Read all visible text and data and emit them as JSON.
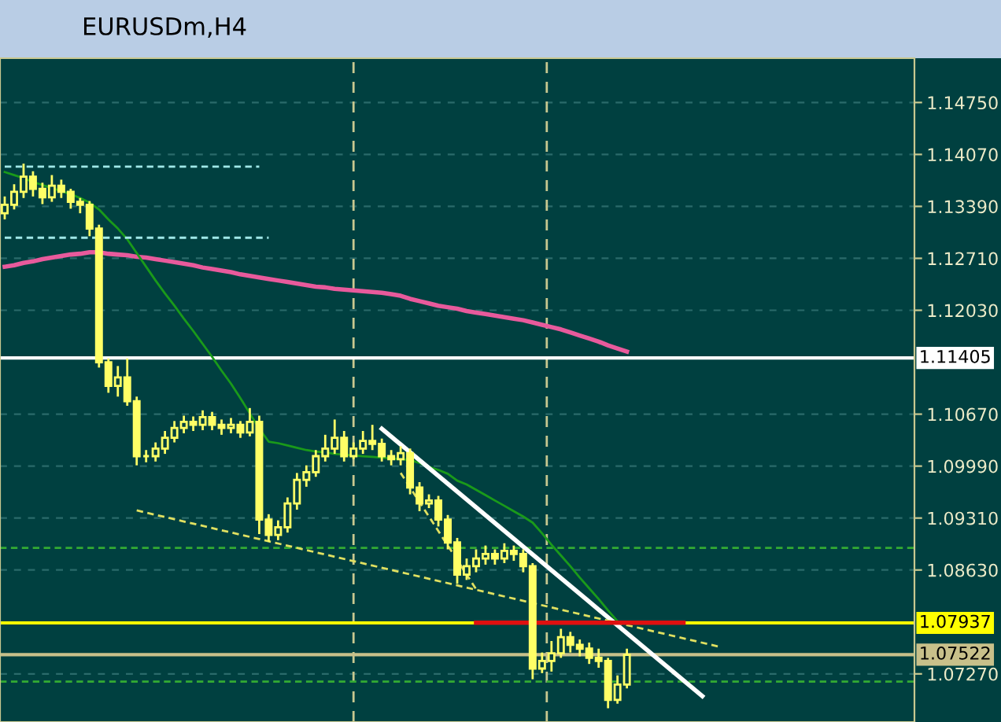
{
  "chart_data": {
    "type": "candlestick",
    "title": "EURUSDm,H4",
    "categories": [
      null,
      null,
      null,
      null,
      null,
      null,
      null,
      null,
      null,
      null,
      null,
      null,
      null,
      null,
      null,
      null,
      null,
      null,
      null,
      null,
      null,
      null,
      null,
      null,
      null,
      null,
      null,
      null,
      null,
      null,
      null,
      null,
      null,
      null,
      null,
      null,
      null,
      null,
      null,
      null,
      null,
      null,
      null,
      null,
      null,
      null,
      null,
      null,
      null,
      null,
      null,
      null,
      null,
      null,
      null,
      null,
      null,
      null,
      null,
      null,
      null,
      null,
      null,
      null,
      null,
      null,
      null,
      null,
      null,
      null,
      null,
      null,
      null,
      null,
      null,
      null,
      null,
      null,
      null,
      null,
      null,
      null,
      null,
      null,
      null,
      null,
      null,
      null,
      null,
      null,
      null,
      null,
      null,
      null,
      null,
      null,
      null
    ],
    "ohlc": [
      [
        1.133,
        1.1352,
        1.1322,
        1.1341
      ],
      [
        1.1341,
        1.1368,
        1.1335,
        1.1358
      ],
      [
        1.1358,
        1.1395,
        1.135,
        1.1378
      ],
      [
        1.1378,
        1.1385,
        1.1352,
        1.1362
      ],
      [
        1.1362,
        1.137,
        1.1342,
        1.1351
      ],
      [
        1.1351,
        1.138,
        1.1345,
        1.1366
      ],
      [
        1.1366,
        1.1374,
        1.135,
        1.1358
      ],
      [
        1.1358,
        1.1362,
        1.1336,
        1.1345
      ],
      [
        1.1345,
        1.135,
        1.133,
        1.1341
      ],
      [
        1.1341,
        1.1346,
        1.13,
        1.131
      ],
      [
        1.131,
        1.1315,
        1.1128,
        1.1135
      ],
      [
        1.1135,
        1.114,
        1.1095,
        1.1104
      ],
      [
        1.1104,
        1.113,
        1.109,
        1.1115
      ],
      [
        1.1115,
        1.114,
        1.1078,
        1.1084
      ],
      [
        1.1084,
        1.109,
        1.1,
        1.1012
      ],
      [
        1.1012,
        1.102,
        1.1004,
        1.1012
      ],
      [
        1.1012,
        1.103,
        1.1005,
        1.1022
      ],
      [
        1.1022,
        1.1045,
        1.1015,
        1.1036
      ],
      [
        1.1036,
        1.1058,
        1.103,
        1.1049
      ],
      [
        1.1049,
        1.1065,
        1.1042,
        1.1057
      ],
      [
        1.1057,
        1.1064,
        1.1045,
        1.1053
      ],
      [
        1.1053,
        1.1072,
        1.1046,
        1.1063
      ],
      [
        1.1063,
        1.107,
        1.1046,
        1.1053
      ],
      [
        1.1053,
        1.106,
        1.104,
        1.1049
      ],
      [
        1.1049,
        1.1062,
        1.1042,
        1.1053
      ],
      [
        1.1053,
        1.1058,
        1.1036,
        1.1043
      ],
      [
        1.1043,
        1.1075,
        1.1038,
        1.1057
      ],
      [
        1.1057,
        1.1065,
        1.091,
        1.0929
      ],
      [
        1.0929,
        1.0936,
        1.09,
        1.0909
      ],
      [
        1.0909,
        1.0928,
        1.0902,
        1.0919
      ],
      [
        1.0919,
        1.0958,
        1.0912,
        1.095
      ],
      [
        1.095,
        1.099,
        1.0942,
        1.0981
      ],
      [
        1.0981,
        1.1,
        1.0972,
        1.0991
      ],
      [
        1.0991,
        1.102,
        1.0985,
        1.1012
      ],
      [
        1.1012,
        1.104,
        1.1005,
        1.1022
      ],
      [
        1.1022,
        1.106,
        1.1015,
        1.1036
      ],
      [
        1.1036,
        1.1045,
        1.1005,
        1.1012
      ],
      [
        1.1012,
        1.103,
        1.1008,
        1.1022
      ],
      [
        1.1022,
        1.1045,
        1.1015,
        1.1032
      ],
      [
        1.1032,
        1.1053,
        1.102,
        1.1028
      ],
      [
        1.1028,
        1.1035,
        1.1005,
        1.1012
      ],
      [
        1.1012,
        1.102,
        1.1,
        1.1008
      ],
      [
        1.1008,
        1.1025,
        1.1,
        1.1016
      ],
      [
        1.1016,
        1.1022,
        1.0962,
        1.0971
      ],
      [
        1.0971,
        1.0978,
        1.094,
        1.095
      ],
      [
        1.095,
        1.0962,
        1.0944,
        1.0954
      ],
      [
        1.0954,
        1.096,
        1.092,
        1.0929
      ],
      [
        1.0929,
        1.0935,
        1.089,
        1.0899
      ],
      [
        1.0899,
        1.0905,
        1.0845,
        1.0857
      ],
      [
        1.0857,
        1.0878,
        1.085,
        1.0868
      ],
      [
        1.0868,
        1.089,
        1.086,
        1.0878
      ],
      [
        1.0878,
        1.0895,
        1.087,
        1.0884
      ],
      [
        1.0884,
        1.089,
        1.087,
        1.0878
      ],
      [
        1.0878,
        1.0898,
        1.0872,
        1.0888
      ],
      [
        1.0888,
        1.0895,
        1.0875,
        1.0884
      ],
      [
        1.0884,
        1.089,
        1.086,
        1.0868
      ],
      [
        1.0868,
        1.0872,
        1.072,
        1.0734
      ],
      [
        1.0734,
        1.0755,
        1.0728,
        1.0744
      ],
      [
        1.0744,
        1.077,
        1.073,
        1.0754
      ],
      [
        1.0754,
        1.0786,
        1.0748,
        1.0775
      ],
      [
        1.0775,
        1.0782,
        1.0755,
        1.0765
      ],
      [
        1.0765,
        1.0772,
        1.075,
        1.076
      ],
      [
        1.076,
        1.0768,
        1.074,
        1.0748
      ],
      [
        1.0748,
        1.076,
        1.0735,
        1.0744
      ],
      [
        1.0744,
        1.0748,
        1.0682,
        1.0693
      ],
      [
        1.0693,
        1.0725,
        1.0688,
        1.0713
      ],
      [
        1.0713,
        1.076,
        1.0708,
        1.0752
      ],
      null,
      null,
      null,
      null,
      null,
      null,
      null,
      null,
      null,
      null,
      null,
      null,
      null,
      null,
      null,
      null,
      null,
      null,
      null,
      null,
      null,
      null,
      null,
      null,
      null,
      null,
      null,
      null,
      null,
      null
    ],
    "series": [
      {
        "type": "line",
        "color": "#e85a9c",
        "line_style": "solid",
        "values": [
          1.126,
          1.1262,
          1.1265,
          1.1267,
          1.127,
          1.1272,
          1.1274,
          1.1276,
          1.1277,
          1.1279,
          1.1279,
          1.1277,
          1.1276,
          1.1275,
          1.1273,
          1.1272,
          1.127,
          1.1268,
          1.1266,
          1.1264,
          1.1262,
          1.1259,
          1.1257,
          1.1255,
          1.1253,
          1.125,
          1.1248,
          1.1246,
          1.1244,
          1.1242,
          1.124,
          1.1238,
          1.1236,
          1.1234,
          1.1233,
          1.1231,
          1.123,
          1.1229,
          1.1228,
          1.1227,
          1.1226,
          1.1224,
          1.1222,
          1.1218,
          1.1215,
          1.1212,
          1.1209,
          1.1207,
          1.1205,
          1.1202,
          1.12,
          1.1198,
          1.1196,
          1.1194,
          1.1192,
          1.119,
          1.1187,
          1.1184,
          1.1181,
          1.1178,
          1.1174,
          1.117,
          1.1166,
          1.1162,
          1.1157,
          1.1153,
          1.1149,
          null,
          null,
          null,
          null,
          null,
          null,
          null,
          null,
          null,
          null,
          null,
          null,
          null,
          null,
          null,
          null,
          null,
          null,
          null,
          null,
          null,
          null,
          null,
          null,
          null,
          null,
          null,
          null,
          null,
          null
        ]
      },
      {
        "type": "line",
        "color": "#1a9a1a",
        "line_style": "solid",
        "values": [
          1.1384,
          1.138,
          1.1376,
          1.1371,
          1.1367,
          1.1363,
          1.1359,
          1.1355,
          1.135,
          1.1344,
          1.1335,
          1.1322,
          1.131,
          1.1296,
          1.1278,
          1.126,
          1.1242,
          1.1225,
          1.1209,
          1.1192,
          1.1176,
          1.1159,
          1.1142,
          1.1124,
          1.1107,
          1.1088,
          1.1068,
          1.1048,
          1.1031,
          1.1029,
          1.1026,
          1.1023,
          1.102,
          1.1018,
          1.1017,
          1.1015,
          1.1014,
          1.1013,
          1.1012,
          1.1011,
          1.101,
          1.1009,
          1.1008,
          1.1007,
          1.1003,
          1.0998,
          1.0994,
          1.0989,
          1.098,
          1.0975,
          1.0968,
          1.0961,
          1.0954,
          1.0947,
          1.094,
          1.0933,
          1.0925,
          1.0911,
          1.0896,
          1.0882,
          1.0868,
          1.0853,
          1.0839,
          1.0825,
          1.081,
          1.0796,
          null,
          null,
          null,
          null,
          null,
          null,
          null,
          null,
          null,
          null,
          null,
          null,
          null,
          null,
          null,
          null,
          null,
          null,
          null,
          null,
          null,
          null,
          null,
          null,
          null,
          null,
          null,
          null,
          null,
          null,
          null
        ]
      },
      {
        "type": "line",
        "color": "#ffffff",
        "line_style": "solid",
        "values": [
          null,
          null,
          null,
          null,
          null,
          null,
          null,
          null,
          null,
          null,
          null,
          null,
          null,
          null,
          null,
          null,
          null,
          null,
          null,
          null,
          null,
          null,
          null,
          null,
          null,
          null,
          null,
          null,
          null,
          null,
          null,
          null,
          null,
          null,
          null,
          null,
          null,
          null,
          null,
          null,
          1.1048,
          null,
          null,
          null,
          null,
          null,
          null,
          null,
          null,
          null,
          null,
          null,
          null,
          null,
          null,
          null,
          null,
          null,
          null,
          null,
          null,
          null,
          null,
          null,
          null,
          null,
          null,
          null,
          null,
          null,
          null,
          null,
          null,
          null,
          1.0698,
          null,
          null,
          null,
          null,
          null,
          null,
          null,
          null,
          null,
          null,
          null,
          null,
          null,
          null,
          null,
          null,
          null,
          null,
          null,
          null,
          null,
          null
        ]
      },
      {
        "type": "line",
        "color": "#e0e060",
        "line_style": "dashed",
        "values": [
          null,
          null,
          null,
          null,
          null,
          null,
          null,
          null,
          null,
          null,
          null,
          null,
          null,
          null,
          1.0941,
          null,
          null,
          null,
          null,
          null,
          null,
          null,
          null,
          null,
          null,
          null,
          null,
          null,
          null,
          null,
          null,
          null,
          null,
          null,
          null,
          null,
          null,
          null,
          null,
          null,
          null,
          null,
          null,
          null,
          null,
          null,
          null,
          null,
          null,
          null,
          null,
          null,
          null,
          null,
          null,
          null,
          null,
          null,
          null,
          null,
          null,
          null,
          null,
          null,
          null,
          null,
          null,
          null,
          null,
          null,
          null,
          null,
          null,
          null,
          null,
          null,
          1.0762,
          null,
          null,
          null,
          null,
          null,
          null,
          null,
          null,
          null,
          null,
          null,
          null,
          null,
          null,
          null,
          null,
          null,
          null,
          null,
          null
        ]
      },
      {
        "type": "line",
        "color": "#e0e060",
        "line_style": "dashed",
        "values": [
          null,
          null,
          null,
          null,
          null,
          null,
          null,
          null,
          null,
          null,
          null,
          null,
          null,
          null,
          null,
          null,
          null,
          null,
          null,
          null,
          null,
          null,
          null,
          null,
          null,
          null,
          null,
          null,
          null,
          null,
          null,
          null,
          null,
          null,
          null,
          null,
          null,
          null,
          null,
          null,
          null,
          null,
          1.099,
          null,
          null,
          null,
          null,
          null,
          null,
          null,
          1.0838,
          null,
          null,
          null,
          null,
          null,
          null,
          null,
          null,
          null,
          null,
          null,
          null,
          null,
          null,
          null,
          null,
          null,
          null,
          null,
          null,
          null,
          null,
          null,
          null,
          null,
          null,
          null,
          null,
          null,
          null,
          null,
          null,
          null,
          null,
          null,
          null,
          null,
          null,
          null,
          null,
          null,
          null,
          null,
          null,
          null,
          null
        ]
      },
      {
        "type": "line",
        "color": "#e01010",
        "line_style": "solid",
        "values": [
          null,
          null,
          null,
          null,
          null,
          null,
          null,
          null,
          null,
          null,
          null,
          null,
          null,
          null,
          null,
          null,
          null,
          null,
          null,
          null,
          null,
          null,
          null,
          null,
          null,
          null,
          null,
          null,
          null,
          null,
          null,
          null,
          null,
          null,
          null,
          null,
          null,
          null,
          null,
          null,
          null,
          null,
          null,
          null,
          null,
          null,
          null,
          null,
          null,
          null,
          1.0794,
          null,
          null,
          null,
          null,
          null,
          null,
          null,
          null,
          null,
          null,
          null,
          null,
          null,
          null,
          null,
          null,
          null,
          null,
          null,
          null,
          null,
          1.0794,
          null,
          null,
          null,
          null,
          null,
          null,
          null,
          null,
          null,
          null,
          null,
          null,
          null,
          null,
          null,
          null,
          null,
          null,
          null,
          null,
          null,
          null,
          null,
          null
        ]
      },
      {
        "type": "line",
        "color": "#a0e8e8",
        "line_style": "dashed",
        "values": [
          1.1391,
          null,
          null,
          null,
          null,
          null,
          null,
          null,
          null,
          null,
          null,
          null,
          null,
          null,
          null,
          null,
          null,
          null,
          null,
          null,
          null,
          null,
          null,
          null,
          null,
          null,
          null,
          1.1391,
          null,
          null,
          null,
          null,
          null,
          null,
          null,
          null,
          null,
          null,
          null,
          null,
          null,
          null,
          null,
          null,
          null,
          null,
          null,
          null,
          null,
          null,
          null,
          null,
          null,
          null,
          null,
          null,
          null,
          null,
          null,
          null,
          null,
          null,
          null,
          null,
          null,
          null,
          null,
          null,
          null,
          null,
          null,
          null,
          null,
          null,
          null,
          null,
          null,
          null,
          null,
          null,
          null,
          null,
          null,
          null,
          null,
          null,
          null,
          null,
          null,
          null,
          null,
          null,
          null,
          null,
          null,
          null,
          null
        ]
      },
      {
        "type": "line",
        "color": "#a0e8e8",
        "line_style": "dashed",
        "values": [
          1.1298,
          null,
          null,
          null,
          null,
          null,
          null,
          null,
          null,
          null,
          null,
          null,
          null,
          null,
          null,
          null,
          null,
          null,
          null,
          null,
          null,
          null,
          null,
          null,
          null,
          null,
          null,
          null,
          1.1298,
          null,
          null,
          null,
          null,
          null,
          null,
          null,
          null,
          null,
          null,
          null,
          null,
          null,
          null,
          null,
          null,
          null,
          null,
          null,
          null,
          null,
          null,
          null,
          null,
          null,
          null,
          null,
          null,
          null,
          null,
          null,
          null,
          null,
          null,
          null,
          null,
          null,
          null,
          null,
          null,
          null,
          null,
          null,
          null,
          null,
          null,
          null,
          null,
          null,
          null,
          null,
          null,
          null,
          null,
          null,
          null,
          null,
          null,
          null,
          null,
          null,
          null,
          null,
          null,
          null,
          null,
          null,
          null
        ]
      }
    ],
    "ref_lines": [
      {
        "axis": "y",
        "value": 1.11405,
        "label": "1.11405",
        "color": "#ffffff",
        "line_style": "solid"
      },
      {
        "axis": "y",
        "value": 1.07937,
        "label": "1.07937",
        "color": "#ffff00",
        "line_style": "solid"
      },
      {
        "axis": "y",
        "value": 1.07522,
        "label": "1.07522",
        "color": "#c8c08a",
        "line_style": "solid"
      },
      {
        "axis": "y",
        "value": 1.0892,
        "color": "#33aa33",
        "line_style": "dashed"
      },
      {
        "axis": "y",
        "value": 1.0717,
        "color": "#33aa33",
        "line_style": "dashed"
      }
    ],
    "ylim": [
      1.0664,
      1.1533
    ],
    "yticks": [
      {
        "value": 1.1475,
        "label": "1.14750"
      },
      {
        "value": 1.1407,
        "label": "1.14070"
      },
      {
        "value": 1.1339,
        "label": "1.13390"
      },
      {
        "value": 1.1271,
        "label": "1.12710"
      },
      {
        "value": 1.1203,
        "label": "1.12030"
      },
      {
        "value": 1.1067,
        "label": "1.10670"
      },
      {
        "value": 1.0999,
        "label": "1.09990"
      },
      {
        "value": 1.0931,
        "label": "1.09310"
      },
      {
        "value": 1.0863,
        "label": "1.08630"
      },
      {
        "value": 1.0727,
        "label": "1.07270"
      }
    ],
    "tick_labels": "y",
    "grid": "y"
  }
}
